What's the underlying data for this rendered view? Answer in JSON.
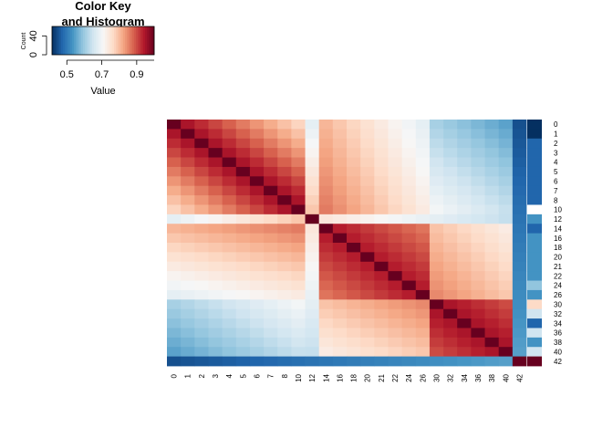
{
  "color_key": {
    "title_line1": "Color Key",
    "title_line2": "and Histogram",
    "xlabel": "Value",
    "ylabel": "Count",
    "x_ticks": [
      "0.5",
      "0.7",
      "0.9"
    ],
    "x_tick_values": [
      0.5,
      0.7,
      0.9
    ],
    "x_range": [
      0.415,
      1.0
    ],
    "y_ticks": [
      "0",
      "40"
    ],
    "y_tick_values": [
      0,
      40
    ],
    "y_range": [
      0,
      60
    ],
    "palette": [
      "#053061",
      "#2166AC",
      "#4393C3",
      "#92C5DE",
      "#D1E5F0",
      "#F7F7F7",
      "#FDDBC7",
      "#F4A582",
      "#D6604D",
      "#B2182B",
      "#67001F"
    ],
    "histogram_color": "#00E5EE"
  },
  "chart_data": {
    "type": "heatmap",
    "title": "",
    "xlabel": "",
    "ylabel": "",
    "row_labels": [
      "0",
      "1",
      "2",
      "3",
      "4",
      "5",
      "6",
      "7",
      "8",
      "10",
      "12",
      "14",
      "16",
      "18",
      "20",
      "21",
      "22",
      "24",
      "26",
      "30",
      "32",
      "34",
      "36",
      "38",
      "40",
      "42"
    ],
    "col_labels": [
      "0",
      "1",
      "2",
      "3",
      "4",
      "5",
      "6",
      "7",
      "8",
      "10",
      "12",
      "14",
      "16",
      "18",
      "20",
      "21",
      "22",
      "24",
      "26",
      "30",
      "32",
      "34",
      "36",
      "38",
      "40",
      "42"
    ],
    "side_colors": [
      "#053061",
      "#053061",
      "#2166AC",
      "#2166AC",
      "#2166AC",
      "#2166AC",
      "#2166AC",
      "#2166AC",
      "#2166AC",
      "#FFFFFF",
      "#4393C3",
      "#2166AC",
      "#4393C3",
      "#4393C3",
      "#4393C3",
      "#4393C3",
      "#4393C3",
      "#92C5DE",
      "#4393C3",
      "#FDDBC7",
      "#D1E5F0",
      "#2166AC",
      "#D1E5F0",
      "#4393C3",
      "#D1E5F0",
      "#67001F"
    ],
    "values_range": [
      0.415,
      1.0
    ]
  }
}
